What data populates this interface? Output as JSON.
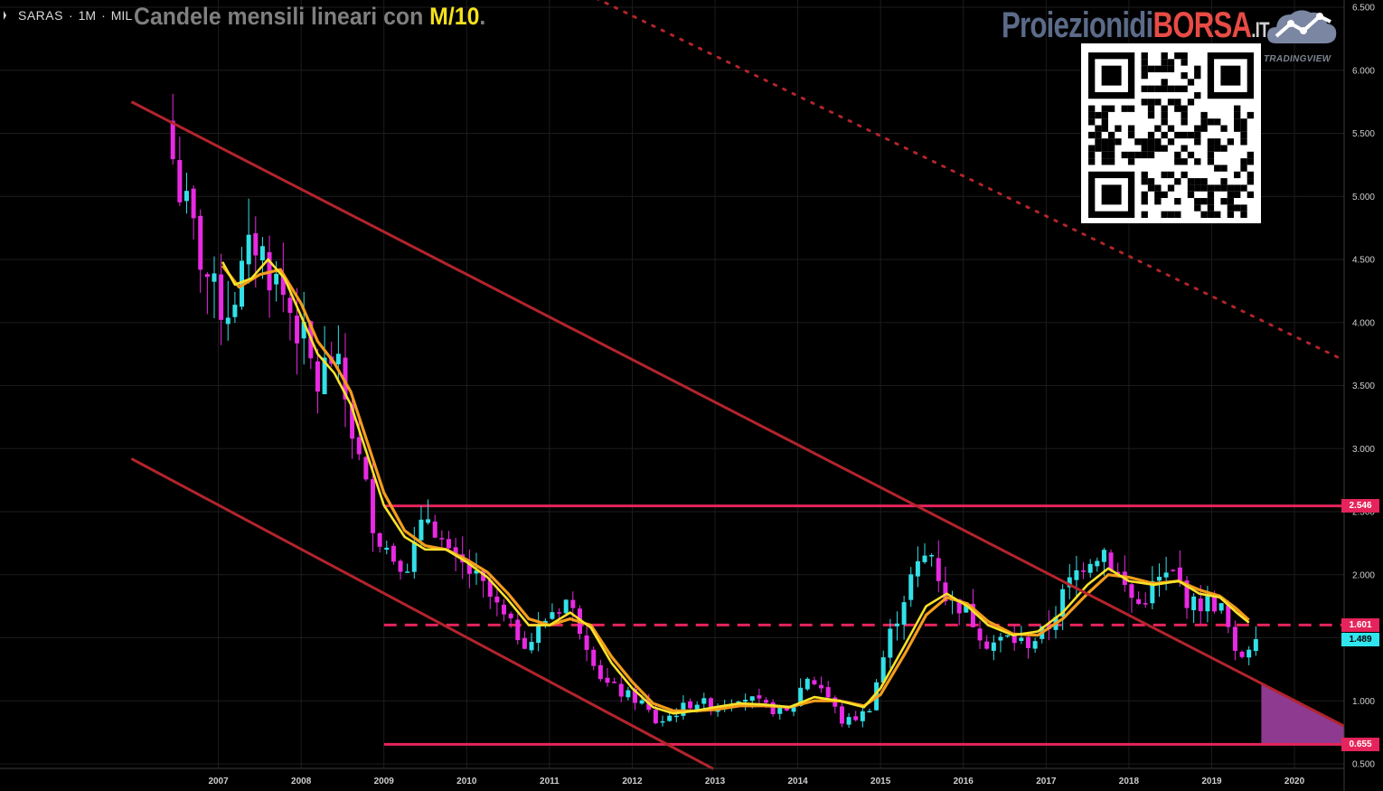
{
  "header": {
    "symbol": "SARAS",
    "interval": "1M",
    "exchange": "MIL",
    "title_prefix": "Candele mensili lineari con ",
    "title_highlight": "M/10",
    "title_suffix": "."
  },
  "brand": {
    "part1": "Proiezionidi",
    "part2": "BORSA",
    "part3": ".IT",
    "platform": "TRADINGVIEW"
  },
  "colors": {
    "background": "#000000",
    "bull_candle": "#33e0e8",
    "bear_candle": "#e82ae2",
    "ma_fast": "#f8e22a",
    "ma_slow": "#f39c1c",
    "trendline": "#b3242c",
    "level_line": "#e5245b",
    "projection_fill": "#9a3f9c",
    "price_tag": "#2fe6ee",
    "grid": "#1c1c1c",
    "axis_text": "#cfcfcf"
  },
  "chart_data": {
    "type": "candlestick",
    "title": "Candele mensili lineari con M/10.",
    "xlabel": "",
    "ylabel": "",
    "x_ticks": [
      "2007",
      "2008",
      "2009",
      "2010",
      "2011",
      "2012",
      "2013",
      "2014",
      "2015",
      "2016",
      "2017",
      "2018",
      "2019",
      "2020"
    ],
    "y_ticks": [
      "0.500",
      "1.000",
      "1.500",
      "2.000",
      "2.500",
      "3.000",
      "3.500",
      "4.000",
      "4.500",
      "5.000",
      "5.500",
      "6.000",
      "6.500"
    ],
    "ylim": [
      0.5,
      6.5
    ],
    "xlim": [
      2006.0,
      2020.6
    ],
    "price_labels": [
      {
        "label": "2.546",
        "value": 2.546,
        "kind": "level"
      },
      {
        "label": "1.601",
        "value": 1.601,
        "kind": "level"
      },
      {
        "label": "1.489",
        "value": 1.489,
        "kind": "last"
      },
      {
        "label": "0.655",
        "value": 0.655,
        "kind": "level"
      }
    ],
    "anchors": [
      [
        2006.45,
        5.3
      ],
      [
        2006.6,
        4.9
      ],
      [
        2006.75,
        4.6
      ],
      [
        2006.95,
        4.2
      ],
      [
        2007.1,
        4.1
      ],
      [
        2007.3,
        4.4
      ],
      [
        2007.45,
        4.65
      ],
      [
        2007.6,
        4.45
      ],
      [
        2007.8,
        4.2
      ],
      [
        2008.0,
        3.9
      ],
      [
        2008.2,
        3.5
      ],
      [
        2008.35,
        3.75
      ],
      [
        2008.5,
        3.5
      ],
      [
        2008.7,
        2.9
      ],
      [
        2008.9,
        2.35
      ],
      [
        2009.1,
        2.15
      ],
      [
        2009.3,
        2.1
      ],
      [
        2009.55,
        2.5
      ],
      [
        2009.8,
        2.1
      ],
      [
        2010.0,
        2.05
      ],
      [
        2010.25,
        1.85
      ],
      [
        2010.5,
        1.6
      ],
      [
        2010.75,
        1.45
      ],
      [
        2011.0,
        1.7
      ],
      [
        2011.2,
        1.8
      ],
      [
        2011.4,
        1.55
      ],
      [
        2011.65,
        1.15
      ],
      [
        2011.9,
        1.05
      ],
      [
        2012.1,
        1.0
      ],
      [
        2012.3,
        0.82
      ],
      [
        2012.5,
        0.9
      ],
      [
        2012.75,
        1.0
      ],
      [
        2013.0,
        0.95
      ],
      [
        2013.3,
        1.05
      ],
      [
        2013.6,
        0.95
      ],
      [
        2013.9,
        0.9
      ],
      [
        2014.1,
        1.2
      ],
      [
        2014.3,
        1.1
      ],
      [
        2014.55,
        0.82
      ],
      [
        2014.85,
        0.92
      ],
      [
        2015.1,
        1.5
      ],
      [
        2015.35,
        1.95
      ],
      [
        2015.6,
        2.2
      ],
      [
        2015.8,
        1.8
      ],
      [
        2016.0,
        1.75
      ],
      [
        2016.3,
        1.45
      ],
      [
        2016.55,
        1.5
      ],
      [
        2016.75,
        1.45
      ],
      [
        2017.0,
        1.55
      ],
      [
        2017.25,
        1.9
      ],
      [
        2017.5,
        2.15
      ],
      [
        2017.7,
        2.2
      ],
      [
        2017.9,
        1.95
      ],
      [
        2018.1,
        1.75
      ],
      [
        2018.35,
        1.95
      ],
      [
        2018.55,
        2.0
      ],
      [
        2018.75,
        1.75
      ],
      [
        2019.0,
        1.8
      ],
      [
        2019.15,
        1.7
      ],
      [
        2019.3,
        1.3
      ],
      [
        2019.45,
        1.45
      ],
      [
        2019.5,
        1.489
      ]
    ],
    "ma_fast_points": [
      [
        2007.05,
        4.48
      ],
      [
        2007.2,
        4.3
      ],
      [
        2007.4,
        4.35
      ],
      [
        2007.6,
        4.5
      ],
      [
        2007.8,
        4.35
      ],
      [
        2008.0,
        4.05
      ],
      [
        2008.2,
        3.75
      ],
      [
        2008.4,
        3.6
      ],
      [
        2008.6,
        3.35
      ],
      [
        2008.8,
        2.95
      ],
      [
        2009.0,
        2.55
      ],
      [
        2009.25,
        2.3
      ],
      [
        2009.5,
        2.2
      ],
      [
        2009.75,
        2.2
      ],
      [
        2010.0,
        2.1
      ],
      [
        2010.25,
        1.98
      ],
      [
        2010.5,
        1.8
      ],
      [
        2010.75,
        1.6
      ],
      [
        2011.0,
        1.6
      ],
      [
        2011.25,
        1.7
      ],
      [
        2011.5,
        1.58
      ],
      [
        2011.75,
        1.3
      ],
      [
        2012.0,
        1.1
      ],
      [
        2012.25,
        0.95
      ],
      [
        2012.5,
        0.9
      ],
      [
        2012.75,
        0.92
      ],
      [
        2013.0,
        0.95
      ],
      [
        2013.3,
        0.98
      ],
      [
        2013.6,
        0.97
      ],
      [
        2013.9,
        0.95
      ],
      [
        2014.2,
        1.03
      ],
      [
        2014.5,
        1.0
      ],
      [
        2014.8,
        0.95
      ],
      [
        2015.0,
        1.1
      ],
      [
        2015.3,
        1.45
      ],
      [
        2015.55,
        1.75
      ],
      [
        2015.8,
        1.85
      ],
      [
        2016.05,
        1.75
      ],
      [
        2016.3,
        1.6
      ],
      [
        2016.6,
        1.52
      ],
      [
        2016.9,
        1.55
      ],
      [
        2017.2,
        1.7
      ],
      [
        2017.5,
        1.92
      ],
      [
        2017.75,
        2.05
      ],
      [
        2018.0,
        1.95
      ],
      [
        2018.3,
        1.92
      ],
      [
        2018.6,
        1.95
      ],
      [
        2018.85,
        1.85
      ],
      [
        2019.1,
        1.82
      ],
      [
        2019.3,
        1.7
      ],
      [
        2019.45,
        1.62
      ]
    ],
    "ma_slow_points": [
      [
        2007.05,
        4.45
      ],
      [
        2007.25,
        4.28
      ],
      [
        2007.5,
        4.38
      ],
      [
        2007.75,
        4.42
      ],
      [
        2008.0,
        4.15
      ],
      [
        2008.2,
        3.85
      ],
      [
        2008.4,
        3.68
      ],
      [
        2008.6,
        3.45
      ],
      [
        2008.8,
        3.05
      ],
      [
        2009.0,
        2.65
      ],
      [
        2009.25,
        2.35
      ],
      [
        2009.5,
        2.23
      ],
      [
        2009.75,
        2.2
      ],
      [
        2010.0,
        2.12
      ],
      [
        2010.25,
        2.02
      ],
      [
        2010.5,
        1.85
      ],
      [
        2010.75,
        1.65
      ],
      [
        2011.0,
        1.6
      ],
      [
        2011.25,
        1.65
      ],
      [
        2011.5,
        1.6
      ],
      [
        2011.75,
        1.35
      ],
      [
        2012.0,
        1.15
      ],
      [
        2012.25,
        0.98
      ],
      [
        2012.5,
        0.92
      ],
      [
        2012.75,
        0.92
      ],
      [
        2013.0,
        0.93
      ],
      [
        2013.3,
        0.96
      ],
      [
        2013.6,
        0.96
      ],
      [
        2013.9,
        0.95
      ],
      [
        2014.2,
        1.0
      ],
      [
        2014.5,
        1.0
      ],
      [
        2014.8,
        0.96
      ],
      [
        2015.0,
        1.05
      ],
      [
        2015.3,
        1.38
      ],
      [
        2015.55,
        1.68
      ],
      [
        2015.8,
        1.82
      ],
      [
        2016.05,
        1.77
      ],
      [
        2016.3,
        1.63
      ],
      [
        2016.6,
        1.53
      ],
      [
        2016.9,
        1.52
      ],
      [
        2017.2,
        1.65
      ],
      [
        2017.5,
        1.85
      ],
      [
        2017.75,
        2.0
      ],
      [
        2018.0,
        1.98
      ],
      [
        2018.3,
        1.93
      ],
      [
        2018.6,
        1.95
      ],
      [
        2018.85,
        1.88
      ],
      [
        2019.1,
        1.83
      ],
      [
        2019.3,
        1.73
      ],
      [
        2019.45,
        1.64
      ]
    ],
    "trendlines": [
      {
        "kind": "upper_channel",
        "from": [
          2005.95,
          5.75
        ],
        "to": [
          2020.6,
          0.8
        ]
      },
      {
        "kind": "lower_channel",
        "from": [
          2005.95,
          2.92
        ],
        "to": [
          2012.98,
          0.46
        ]
      },
      {
        "kind": "long_term_dotted",
        "from": [
          2011.0,
          6.75
        ],
        "to": [
          2020.6,
          3.7
        ]
      }
    ],
    "levels": [
      {
        "value": 2.546,
        "from": 2009.0,
        "style": "solid"
      },
      {
        "value": 1.601,
        "from": 2009.0,
        "style": "dashed"
      },
      {
        "value": 0.655,
        "from": 2009.0,
        "style": "solid"
      }
    ],
    "projection_zone": {
      "x_from": 2019.6,
      "x_to": 2020.6,
      "lower": 0.655
    }
  }
}
